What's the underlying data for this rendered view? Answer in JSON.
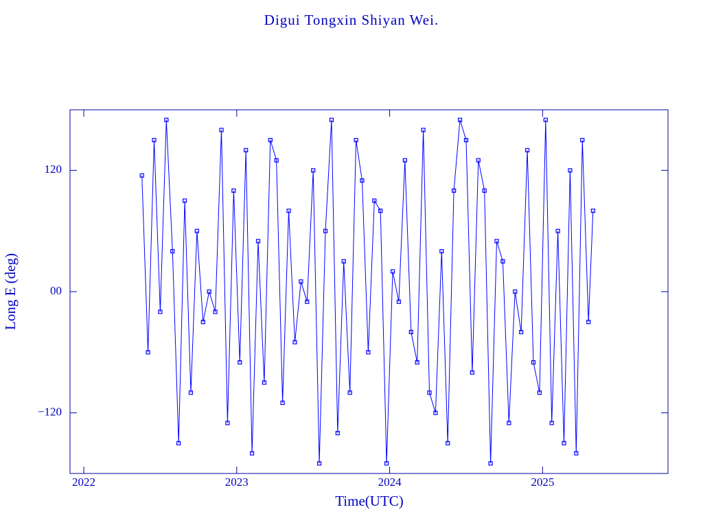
{
  "chart_data": {
    "type": "line",
    "title": "Digui Tongxin Shiyan Wei.",
    "xlabel": "Time(UTC)",
    "ylabel": "Long E (deg)",
    "x": [
      2022.38,
      2022.42,
      2022.46,
      2022.5,
      2022.54,
      2022.58,
      2022.62,
      2022.66,
      2022.7,
      2022.74,
      2022.78,
      2022.82,
      2022.86,
      2022.9,
      2022.94,
      2022.98,
      2023.02,
      2023.06,
      2023.1,
      2023.14,
      2023.18,
      2023.22,
      2023.26,
      2023.3,
      2023.34,
      2023.38,
      2023.42,
      2023.46,
      2023.5,
      2023.54,
      2023.58,
      2023.62,
      2023.66,
      2023.7,
      2023.74,
      2023.78,
      2023.82,
      2023.86,
      2023.9,
      2023.94,
      2023.98,
      2024.02,
      2024.06,
      2024.1,
      2024.14,
      2024.18,
      2024.22,
      2024.26,
      2024.3,
      2024.34,
      2024.38,
      2024.42,
      2024.46,
      2024.5,
      2024.54,
      2024.58,
      2024.62,
      2024.66,
      2024.7,
      2024.74,
      2024.78,
      2024.82,
      2024.86,
      2024.9,
      2024.94,
      2024.98,
      2025.02,
      2025.06,
      2025.1,
      2025.14,
      2025.18,
      2025.22,
      2025.26,
      2025.3,
      2025.33
    ],
    "series": [
      {
        "color": "#0000ff",
        "marker": "square",
        "values": [
          115,
          -60,
          150,
          -20,
          170,
          40,
          -150,
          90,
          -100,
          60,
          -30,
          0,
          -20,
          160,
          -130,
          100,
          -70,
          140,
          -160,
          50,
          -90,
          150,
          130,
          -110,
          80,
          -50,
          10,
          -10,
          120,
          -170,
          60,
          170,
          -140,
          30,
          -100,
          150,
          110,
          -60,
          90,
          80,
          -170,
          20,
          -10,
          130,
          -40,
          -70,
          160,
          -100,
          -120,
          40,
          -150,
          100,
          170,
          150,
          -80,
          130,
          100,
          -170,
          50,
          30,
          -130,
          0,
          -40,
          140,
          -70,
          -100,
          170,
          -130,
          60,
          -150,
          120,
          -160,
          150,
          -30,
          80
        ]
      }
    ],
    "xlim": [
      2021.91,
      2025.82
    ],
    "ylim": [
      -180,
      180
    ],
    "xticks": [
      2022,
      2023,
      2024,
      2025
    ],
    "yticks": [
      {
        "value": -120,
        "label": "−120"
      },
      {
        "value": 0,
        "label": "00"
      },
      120
    ],
    "frame_color": "#0000a0"
  }
}
